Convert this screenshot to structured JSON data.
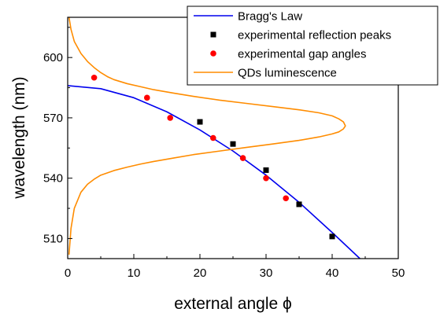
{
  "chart_data": {
    "type": "line",
    "xlabel": "external angle ϕ",
    "ylabel": "wavelength (nm)",
    "xlim": [
      0,
      50
    ],
    "ylim": [
      500,
      620
    ],
    "x_ticks": [
      0,
      10,
      20,
      30,
      40,
      50
    ],
    "x_minor_ticks": [
      5,
      15,
      25,
      35,
      45
    ],
    "y_ticks": [
      510,
      540,
      570,
      600
    ],
    "y_minor_ticks": [
      525,
      555,
      585,
      615
    ],
    "grid": false,
    "legend": {
      "position": "top-right"
    },
    "series": [
      {
        "name": "Bragg's Law",
        "kind": "line",
        "color": "#0000ee",
        "x": [
          0,
          5,
          10,
          15,
          20,
          25,
          30,
          35,
          40,
          44.2
        ],
        "y": [
          586,
          584.5,
          580,
          573,
          564,
          553.5,
          541.5,
          528,
          513,
          500
        ]
      },
      {
        "name": "experimental reflection peaks",
        "kind": "scatter",
        "marker": "square",
        "color": "#000000",
        "x": [
          20,
          25,
          30,
          35,
          40
        ],
        "y": [
          568,
          557,
          544,
          527,
          511
        ]
      },
      {
        "name": "experimental gap angles",
        "kind": "scatter",
        "marker": "circle",
        "color": "#ff0000",
        "x": [
          4,
          12,
          15.5,
          22,
          26.5,
          30,
          33
        ],
        "y": [
          590,
          580,
          570,
          560,
          550,
          540,
          530
        ]
      },
      {
        "name": "QDs luminescence",
        "kind": "line",
        "color": "#ff8c00",
        "x": [
          0.2,
          0.5,
          1,
          2,
          3,
          4,
          5,
          6,
          7,
          9,
          11,
          13,
          16,
          19,
          23,
          27,
          31,
          35,
          38,
          40,
          41,
          41.7,
          42,
          41.7,
          41,
          40,
          38,
          35,
          31,
          27,
          23,
          19,
          16,
          13,
          11,
          9,
          7,
          5,
          4,
          3,
          2,
          1,
          0.5,
          0.2
        ],
        "y": [
          620,
          614,
          608,
          602,
          598,
          595,
          592.5,
          590.5,
          589,
          587,
          585.5,
          584,
          582.3,
          580.7,
          578.8,
          577.2,
          575.6,
          574,
          572.5,
          571,
          569.5,
          568,
          566,
          564.5,
          563,
          562,
          560.5,
          558.8,
          557,
          555.3,
          553.5,
          551.7,
          550,
          548.3,
          547,
          545.5,
          543.8,
          541.5,
          539.5,
          537,
          533,
          525,
          515,
          502
        ]
      }
    ]
  }
}
